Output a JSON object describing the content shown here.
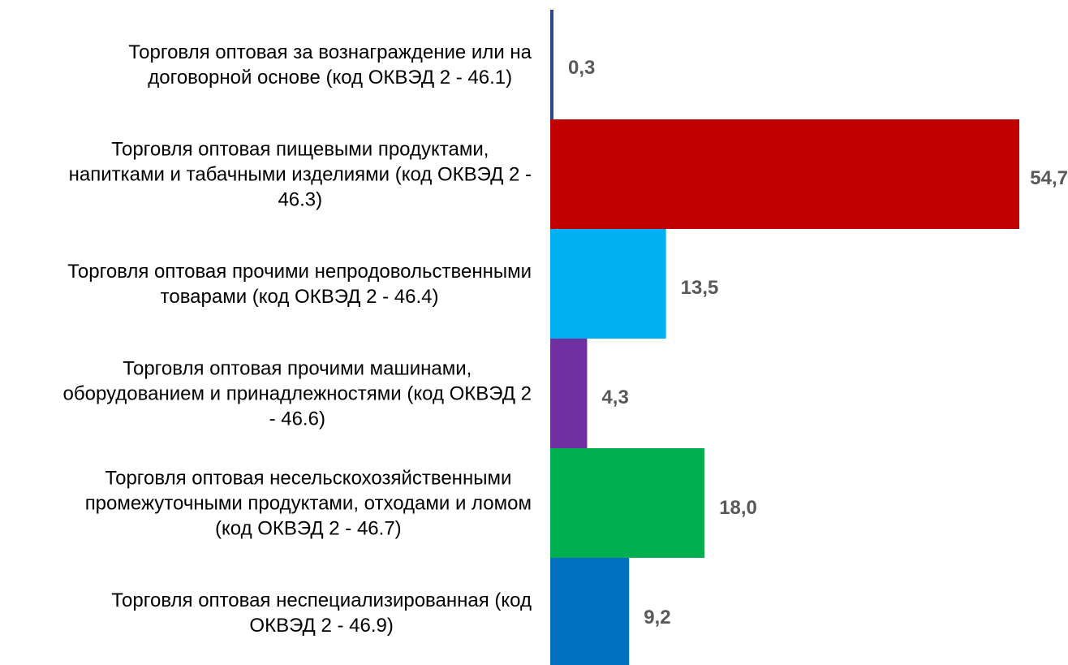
{
  "chart_data": {
    "type": "bar",
    "orientation": "horizontal",
    "categories": [
      [
        "Торговля оптовая за вознаграждение или на",
        "договорной основе (код ОКВЭД 2 - 46.1)"
      ],
      [
        "Торговля оптовая пищевыми продуктами,",
        "напитками и табачными изделиями (код ОКВЭД 2 -",
        "46.3)"
      ],
      [
        "Торговля оптовая прочими непродовольственными",
        "товарами (код ОКВЭД 2 - 46.4)"
      ],
      [
        "Торговля оптовая прочими машинами,",
        "оборудованием и принадлежностями (код ОКВЭД 2",
        "- 46.6)"
      ],
      [
        "Торговля оптовая несельскохозяйственными",
        "промежуточными продуктами, отходами и ломом",
        "(код ОКВЭД 2 - 46.7)"
      ],
      [
        "Торговля оптовая неспециализированная (код",
        "ОКВЭД 2 - 46.9)"
      ]
    ],
    "values": [
      0.3,
      54.7,
      13.5,
      4.3,
      18.0,
      9.2
    ],
    "value_labels": [
      "0,3",
      "54,7",
      "13,5",
      "4,3",
      "18,0",
      "9,2"
    ],
    "colors": [
      "#2E4A8C",
      "#C00000",
      "#00B0F0",
      "#7030A0",
      "#00B050",
      "#0070C0"
    ],
    "xlim": [
      0,
      54.7
    ],
    "grid": false,
    "legend": "none",
    "title": "",
    "xlabel": "",
    "ylabel": ""
  }
}
